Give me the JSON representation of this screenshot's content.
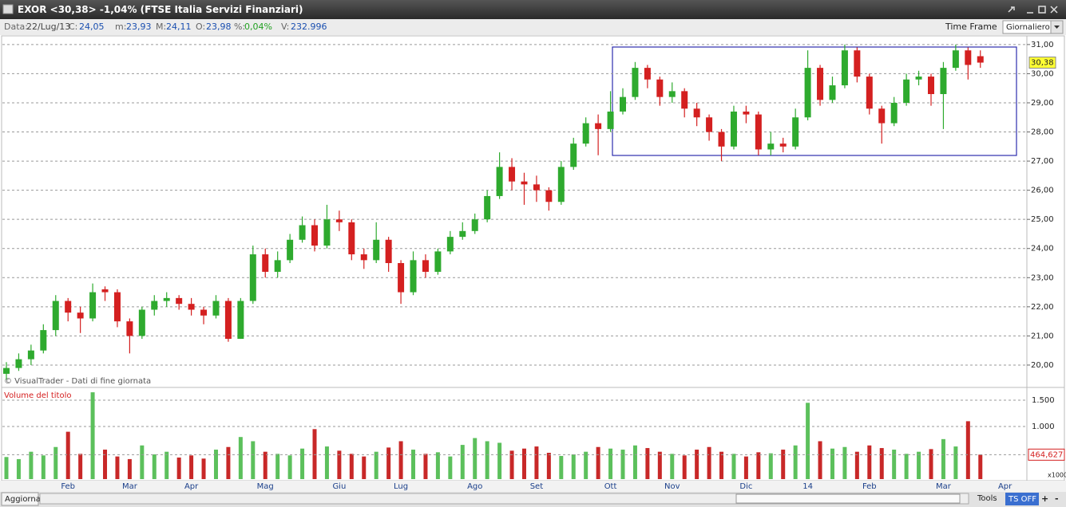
{
  "header": {
    "title": "EXOR <30,38> -1,04%  (FTSE Italia Servizi Finanziari)",
    "info": [
      {
        "label": "Data:",
        "value": "22/Lug/13"
      },
      {
        "label": "C:",
        "value": "24,05"
      },
      {
        "label": "m:",
        "value": "23,93"
      },
      {
        "label": "M:",
        "value": "24,11"
      },
      {
        "label": "O:",
        "value": "23,98"
      },
      {
        "label": "%:",
        "value": "0,04%"
      },
      {
        "label": "V:",
        "value": "232.996"
      }
    ],
    "time_frame_label": "Time Frame",
    "time_frame": "Giornaliero"
  },
  "chart_data": [
    {
      "type": "candlestick",
      "credit": "© VisualTrader - Dati di fine giornata",
      "last_label": "30,38",
      "colors": {
        "up": "#2eaa2e",
        "down": "#d42020"
      },
      "open": [
        19.7,
        19.9,
        20.2,
        20.5,
        21.2,
        22.2,
        21.8,
        21.6,
        22.6,
        22.5,
        21.5,
        21.0,
        21.9,
        22.2,
        22.3,
        22.1,
        21.9,
        21.7,
        22.2,
        20.9,
        22.2,
        23.8,
        23.2,
        23.6,
        24.3,
        24.8,
        24.1,
        25.0,
        24.9,
        23.8,
        23.6,
        24.3,
        23.5,
        22.5,
        23.6,
        23.2,
        23.9,
        24.4,
        24.6,
        25.0,
        25.8,
        26.8,
        26.3,
        26.2,
        26.0,
        25.6,
        26.8,
        27.6,
        28.3,
        28.1,
        28.7,
        29.2,
        30.2,
        29.8,
        29.2,
        29.4,
        28.8,
        28.5,
        28.0,
        27.5,
        28.7,
        28.6,
        27.4,
        27.6,
        27.5,
        28.5,
        30.2,
        29.1,
        29.6,
        30.8,
        29.9,
        28.8,
        28.3,
        29.0,
        29.8,
        29.9,
        29.3,
        30.2,
        30.8,
        30.6,
        null,
        null
      ],
      "high": [
        20.1,
        20.4,
        20.7,
        21.4,
        22.4,
        22.3,
        22.0,
        22.8,
        22.7,
        22.6,
        21.6,
        22.0,
        22.4,
        22.5,
        22.4,
        22.3,
        22.0,
        22.4,
        22.3,
        22.3,
        24.1,
        24.0,
        23.9,
        24.5,
        25.1,
        25.0,
        25.5,
        25.3,
        25.0,
        24.0,
        24.9,
        24.4,
        23.6,
        23.9,
        23.8,
        24.0,
        24.6,
        24.9,
        25.2,
        26.0,
        27.3,
        27.1,
        26.6,
        26.5,
        26.1,
        27.0,
        27.8,
        28.5,
        28.6,
        29.4,
        29.5,
        30.4,
        30.3,
        29.9,
        29.7,
        29.5,
        29.0,
        28.6,
        28.1,
        28.9,
        28.9,
        28.7,
        28.0,
        27.8,
        28.8,
        30.8,
        30.3,
        29.9,
        31.0,
        30.9,
        30.0,
        28.9,
        29.2,
        30.0,
        30.1,
        30.0,
        30.4,
        31.0,
        30.9,
        30.8,
        null,
        null
      ],
      "low": [
        19.5,
        19.8,
        20.0,
        20.4,
        21.0,
        21.5,
        21.1,
        21.5,
        22.2,
        21.3,
        20.4,
        20.9,
        21.7,
        22.0,
        21.9,
        21.7,
        21.4,
        21.6,
        20.8,
        20.9,
        22.1,
        23.0,
        23.0,
        23.5,
        24.2,
        23.9,
        24.0,
        24.6,
        23.6,
        23.3,
        23.5,
        23.2,
        22.1,
        22.4,
        23.0,
        23.1,
        23.8,
        24.3,
        24.5,
        24.9,
        25.7,
        26.0,
        25.5,
        25.6,
        25.3,
        25.5,
        26.7,
        27.5,
        27.2,
        28.0,
        28.6,
        29.1,
        29.5,
        28.9,
        29.0,
        28.5,
        28.2,
        27.7,
        27.0,
        27.4,
        28.3,
        27.2,
        27.2,
        27.3,
        27.4,
        28.4,
        28.9,
        29.0,
        29.5,
        29.7,
        28.6,
        27.6,
        28.2,
        28.9,
        29.6,
        28.9,
        28.1,
        30.1,
        29.8,
        30.2,
        null,
        null
      ],
      "close": [
        19.9,
        20.2,
        20.5,
        21.2,
        22.2,
        21.8,
        21.6,
        22.5,
        22.5,
        21.5,
        21.0,
        21.9,
        22.2,
        22.3,
        22.1,
        21.9,
        21.7,
        22.2,
        20.9,
        22.2,
        23.8,
        23.2,
        23.6,
        24.3,
        24.8,
        24.1,
        25.0,
        24.9,
        23.8,
        23.6,
        24.3,
        23.5,
        22.5,
        23.6,
        23.2,
        23.9,
        24.4,
        24.6,
        25.0,
        25.8,
        26.8,
        26.3,
        26.2,
        26.0,
        25.6,
        26.8,
        27.6,
        28.3,
        28.1,
        28.7,
        29.2,
        30.2,
        29.8,
        29.2,
        29.4,
        28.8,
        28.5,
        28.0,
        27.5,
        28.7,
        28.6,
        27.4,
        27.6,
        27.5,
        28.5,
        30.2,
        29.1,
        29.6,
        30.8,
        29.9,
        28.8,
        28.3,
        29.0,
        29.8,
        29.9,
        29.3,
        30.2,
        30.8,
        30.3,
        30.38,
        null,
        null
      ],
      "ylim": [
        19.26,
        31.27
      ],
      "yticks": [
        {
          "value": 20,
          "label": "20,00"
        },
        {
          "value": 21,
          "label": "21,00"
        },
        {
          "value": 22,
          "label": "22,00"
        },
        {
          "value": 23,
          "label": "23,00"
        },
        {
          "value": 24,
          "label": "24,00"
        },
        {
          "value": 25,
          "label": "25,00"
        },
        {
          "value": 26,
          "label": "26,00"
        },
        {
          "value": 27,
          "label": "27,00"
        },
        {
          "value": 28,
          "label": "28,00"
        },
        {
          "value": 29,
          "label": "29,00"
        },
        {
          "value": 30,
          "label": "30,00"
        },
        {
          "value": 31,
          "label": "31,00"
        }
      ],
      "grid": true
    },
    {
      "type": "bar",
      "title": "Volume del titolo",
      "unit": "x1000",
      "last_label": "464,627",
      "colors": {
        "up": "#5cc05c",
        "down": "#c82828"
      },
      "categories": [
        null,
        null,
        null,
        null,
        null,
        "Feb",
        null,
        null,
        null,
        null,
        "Mar",
        null,
        null,
        null,
        null,
        "Apr",
        null,
        null,
        null,
        null,
        null,
        "Mag",
        null,
        null,
        null,
        null,
        null,
        "Giu",
        null,
        null,
        null,
        null,
        "Lug",
        null,
        null,
        null,
        null,
        null,
        "Ago",
        null,
        null,
        null,
        null,
        "Set",
        null,
        null,
        null,
        null,
        null,
        "Ott",
        null,
        null,
        null,
        null,
        "Nov",
        null,
        null,
        null,
        null,
        null,
        "Dic",
        null,
        null,
        null,
        null,
        "14",
        null,
        null,
        null,
        null,
        "Feb",
        null,
        null,
        null,
        null,
        null,
        "Mar",
        null,
        null,
        null,
        null,
        "Apr"
      ],
      "values": [
        420,
        380,
        520,
        450,
        610,
        900,
        480,
        1650,
        560,
        430,
        380,
        640,
        470,
        520,
        410,
        450,
        390,
        560,
        610,
        800,
        720,
        520,
        480,
        450,
        580,
        950,
        620,
        540,
        480,
        430,
        520,
        600,
        720,
        560,
        480,
        510,
        430,
        650,
        780,
        720,
        690,
        540,
        580,
        620,
        500,
        440,
        470,
        520,
        610,
        580,
        560,
        640,
        590,
        520,
        480,
        450,
        560,
        610,
        520,
        480,
        430,
        510,
        490,
        560,
        640,
        1450,
        720,
        580,
        610,
        520,
        640,
        590,
        560,
        480,
        520,
        570,
        760,
        620,
        1100,
        464.627,
        null,
        null
      ],
      "ylim": [
        0,
        1712
      ],
      "yticks": [
        {
          "value": 1000,
          "label": "1.000"
        },
        {
          "value": 1500,
          "label": "1.500"
        }
      ],
      "grid": true
    }
  ],
  "footer": {
    "refresh": "Aggiorna",
    "tools": "Tools",
    "ts": "TS OFF",
    "plus": "+",
    "minus": "-"
  }
}
